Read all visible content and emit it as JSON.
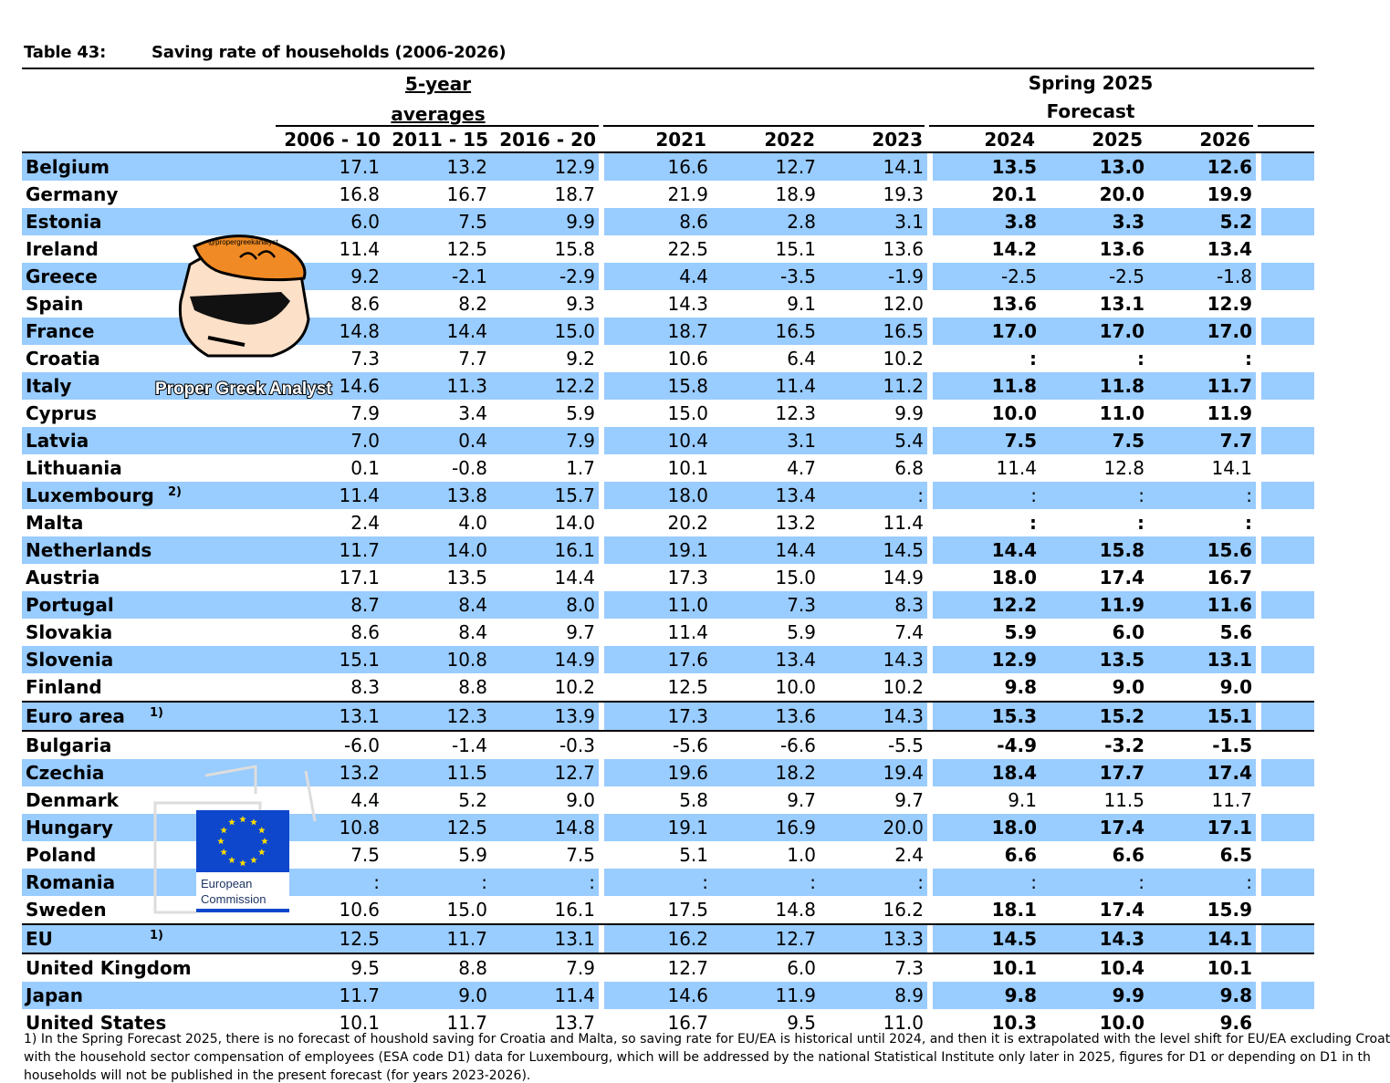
{
  "table_number": "Table 43:",
  "table_title": "Saving rate of households (2006-2026)",
  "header": {
    "avg_label_1": "5-year",
    "avg_label_2": "averages",
    "forecast_label_1": "Spring 2025",
    "forecast_label_2": "Forecast",
    "years": [
      "2006 - 10",
      "2011 - 15",
      "2016 - 20",
      "2021",
      "2022",
      "2023",
      "2024",
      "2025",
      "2026"
    ]
  },
  "rows": [
    {
      "country": "Belgium",
      "note": "",
      "values": [
        "17.1",
        "13.2",
        "12.9",
        "16.6",
        "12.7",
        "14.1",
        "13.5",
        "13.0",
        "12.6"
      ],
      "bold_forecast": true
    },
    {
      "country": "Germany",
      "note": "",
      "values": [
        "16.8",
        "16.7",
        "18.7",
        "21.9",
        "18.9",
        "19.3",
        "20.1",
        "20.0",
        "19.9"
      ],
      "bold_forecast": true
    },
    {
      "country": "Estonia",
      "note": "",
      "values": [
        "6.0",
        "7.5",
        "9.9",
        "8.6",
        "2.8",
        "3.1",
        "3.8",
        "3.3",
        "5.2"
      ],
      "bold_forecast": true
    },
    {
      "country": "Ireland",
      "note": "",
      "values": [
        "11.4",
        "12.5",
        "15.8",
        "22.5",
        "15.1",
        "13.6",
        "14.2",
        "13.6",
        "13.4"
      ],
      "bold_forecast": true
    },
    {
      "country": "Greece",
      "note": "",
      "values": [
        "9.2",
        "-2.1",
        "-2.9",
        "4.4",
        "-3.5",
        "-1.9",
        "-2.5",
        "-2.5",
        "-1.8"
      ],
      "bold_forecast": false
    },
    {
      "country": "Spain",
      "note": "",
      "values": [
        "8.6",
        "8.2",
        "9.3",
        "14.3",
        "9.1",
        "12.0",
        "13.6",
        "13.1",
        "12.9"
      ],
      "bold_forecast": true
    },
    {
      "country": "France",
      "note": "",
      "values": [
        "14.8",
        "14.4",
        "15.0",
        "18.7",
        "16.5",
        "16.5",
        "17.0",
        "17.0",
        "17.0"
      ],
      "bold_forecast": true
    },
    {
      "country": "Croatia",
      "note": "",
      "values": [
        "7.3",
        "7.7",
        "9.2",
        "10.6",
        "6.4",
        "10.2",
        ":",
        ":",
        ":"
      ],
      "bold_forecast": true
    },
    {
      "country": "Italy",
      "note": "",
      "values": [
        "14.6",
        "11.3",
        "12.2",
        "15.8",
        "11.4",
        "11.2",
        "11.8",
        "11.8",
        "11.7"
      ],
      "bold_forecast": true
    },
    {
      "country": "Cyprus",
      "note": "",
      "values": [
        "7.9",
        "3.4",
        "5.9",
        "15.0",
        "12.3",
        "9.9",
        "10.0",
        "11.0",
        "11.9"
      ],
      "bold_forecast": true
    },
    {
      "country": "Latvia",
      "note": "",
      "values": [
        "7.0",
        "0.4",
        "7.9",
        "10.4",
        "3.1",
        "5.4",
        "7.5",
        "7.5",
        "7.7"
      ],
      "bold_forecast": true
    },
    {
      "country": "Lithuania",
      "note": "",
      "values": [
        "0.1",
        "-0.8",
        "1.7",
        "10.1",
        "4.7",
        "6.8",
        "11.4",
        "12.8",
        "14.1"
      ],
      "bold_forecast": false
    },
    {
      "country": "Luxembourg",
      "note": "2)",
      "values": [
        "11.4",
        "13.8",
        "15.7",
        "18.0",
        "13.4",
        ":",
        ":",
        ":",
        ":"
      ],
      "bold_forecast": false
    },
    {
      "country": "Malta",
      "note": "",
      "values": [
        "2.4",
        "4.0",
        "14.0",
        "20.2",
        "13.2",
        "11.4",
        ":",
        ":",
        ":"
      ],
      "bold_forecast": true
    },
    {
      "country": "Netherlands",
      "note": "",
      "values": [
        "11.7",
        "14.0",
        "16.1",
        "19.1",
        "14.4",
        "14.5",
        "14.4",
        "15.8",
        "15.6"
      ],
      "bold_forecast": true
    },
    {
      "country": "Austria",
      "note": "",
      "values": [
        "17.1",
        "13.5",
        "14.4",
        "17.3",
        "15.0",
        "14.9",
        "18.0",
        "17.4",
        "16.7"
      ],
      "bold_forecast": true
    },
    {
      "country": "Portugal",
      "note": "",
      "values": [
        "8.7",
        "8.4",
        "8.0",
        "11.0",
        "7.3",
        "8.3",
        "12.2",
        "11.9",
        "11.6"
      ],
      "bold_forecast": true
    },
    {
      "country": "Slovakia",
      "note": "",
      "values": [
        "8.6",
        "8.4",
        "9.7",
        "11.4",
        "5.9",
        "7.4",
        "5.9",
        "6.0",
        "5.6"
      ],
      "bold_forecast": true
    },
    {
      "country": "Slovenia",
      "note": "",
      "values": [
        "15.1",
        "10.8",
        "14.9",
        "17.6",
        "13.4",
        "14.3",
        "12.9",
        "13.5",
        "13.1"
      ],
      "bold_forecast": true
    },
    {
      "country": "Finland",
      "note": "",
      "values": [
        "8.3",
        "8.8",
        "10.2",
        "12.5",
        "10.0",
        "10.2",
        "9.8",
        "9.0",
        "9.0"
      ],
      "bold_forecast": true
    },
    {
      "country": "Euro area",
      "note": "1)",
      "values": [
        "13.1",
        "12.3",
        "13.9",
        "17.3",
        "13.6",
        "14.3",
        "15.3",
        "15.2",
        "15.1"
      ],
      "bold_forecast": true,
      "aggregate": true
    },
    {
      "country": "Bulgaria",
      "note": "",
      "values": [
        "-6.0",
        "-1.4",
        "-0.3",
        "-5.6",
        "-6.6",
        "-5.5",
        "-4.9",
        "-3.2",
        "-1.5"
      ],
      "bold_forecast": true,
      "aggregate": true
    },
    {
      "country": "Czechia",
      "note": "",
      "values": [
        "13.2",
        "11.5",
        "12.7",
        "19.6",
        "18.2",
        "19.4",
        "18.4",
        "17.7",
        "17.4"
      ],
      "bold_forecast": true
    },
    {
      "country": "Denmark",
      "note": "",
      "values": [
        "4.4",
        "5.2",
        "9.0",
        "5.8",
        "9.7",
        "9.7",
        "9.1",
        "11.5",
        "11.7"
      ],
      "bold_forecast": false
    },
    {
      "country": "Hungary",
      "note": "",
      "values": [
        "10.8",
        "12.5",
        "14.8",
        "19.1",
        "16.9",
        "20.0",
        "18.0",
        "17.4",
        "17.1"
      ],
      "bold_forecast": true
    },
    {
      "country": "Poland",
      "note": "",
      "values": [
        "7.5",
        "5.9",
        "7.5",
        "5.1",
        "1.0",
        "2.4",
        "6.6",
        "6.6",
        "6.5"
      ],
      "bold_forecast": true
    },
    {
      "country": "Romania",
      "note": "",
      "values": [
        ":",
        ":",
        ":",
        ":",
        ":",
        ":",
        ":",
        ":",
        ":"
      ],
      "bold_forecast": false
    },
    {
      "country": "Sweden",
      "note": "",
      "values": [
        "10.6",
        "15.0",
        "16.1",
        "17.5",
        "14.8",
        "16.2",
        "18.1",
        "17.4",
        "15.9"
      ],
      "bold_forecast": true
    },
    {
      "country": "EU",
      "note": "1)",
      "values": [
        "12.5",
        "11.7",
        "13.1",
        "16.2",
        "12.7",
        "13.3",
        "14.5",
        "14.3",
        "14.1"
      ],
      "bold_forecast": true,
      "aggregate": true
    },
    {
      "country": "United Kingdom",
      "note": "",
      "values": [
        "9.5",
        "8.8",
        "7.9",
        "12.7",
        "6.0",
        "7.3",
        "10.1",
        "10.4",
        "10.1"
      ],
      "bold_forecast": true,
      "aggregate": true
    },
    {
      "country": "Japan",
      "note": "",
      "values": [
        "11.7",
        "9.0",
        "11.4",
        "14.6",
        "11.9",
        "8.9",
        "9.8",
        "9.9",
        "9.8"
      ],
      "bold_forecast": true
    },
    {
      "country": "United States",
      "note": "",
      "values": [
        "10.1",
        "11.7",
        "13.7",
        "16.7",
        "9.5",
        "11.0",
        "10.3",
        "10.0",
        "9.6"
      ],
      "bold_forecast": true
    }
  ],
  "footnotes": [
    "1) In the Spring Forecast 2025, there is no forecast of houshold saving for Croatia and Malta, so saving rate for EU/EA is historical until 2024, and then it is extrapolated with the level shift for EU/EA excluding Croat",
    "with the household sector compensation of employees (ESA code D1) data for Luxembourg, which will be addressed by the national Statistical Institute only later in 2025, figures for D1 or depending on D1 in th",
    "households will not be published in the present forecast (for years 2023-2026)."
  ],
  "overlays": {
    "mascot_caption": "Proper Greek Analyst",
    "mascot_hair_text": "@propergreekanalyst",
    "ec_logo_line1": "European",
    "ec_logo_line2": "Commission"
  },
  "colors": {
    "row_shade": "#99ccff",
    "mascot_hair": "#f08a24",
    "eu_blue": "#0e47cb",
    "eu_star": "#ffdd00"
  }
}
